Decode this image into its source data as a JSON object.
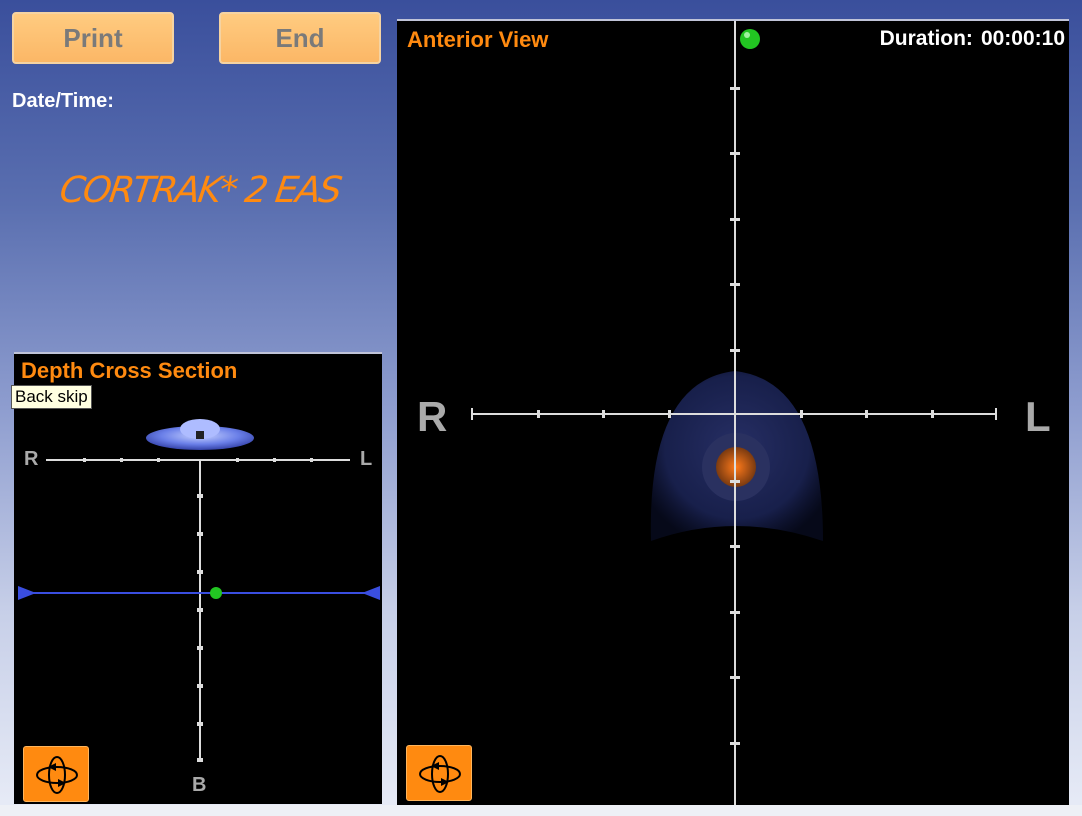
{
  "toolbar": {
    "print_label": "Print",
    "end_label": "End"
  },
  "date_time_label": "Date/Time:",
  "logo_text": "CORTRAK* 2 EAS",
  "depth_panel": {
    "title": "Depth Cross Section",
    "tooltip": "Back skip",
    "left_label": "R",
    "right_label": "L",
    "bottom_label": "B",
    "rotate_icon": "rotate-3d-icon"
  },
  "anterior_panel": {
    "title": "Anterior View",
    "duration_label": "Duration:",
    "duration_value": "00:00:10",
    "left_label": "R",
    "right_label": "L",
    "rotate_icon": "rotate-3d-icon"
  },
  "colors": {
    "accent": "#ff8a10",
    "button_bg": "#fbb766",
    "panel_bg": "#000000",
    "marker": "#22c522"
  }
}
